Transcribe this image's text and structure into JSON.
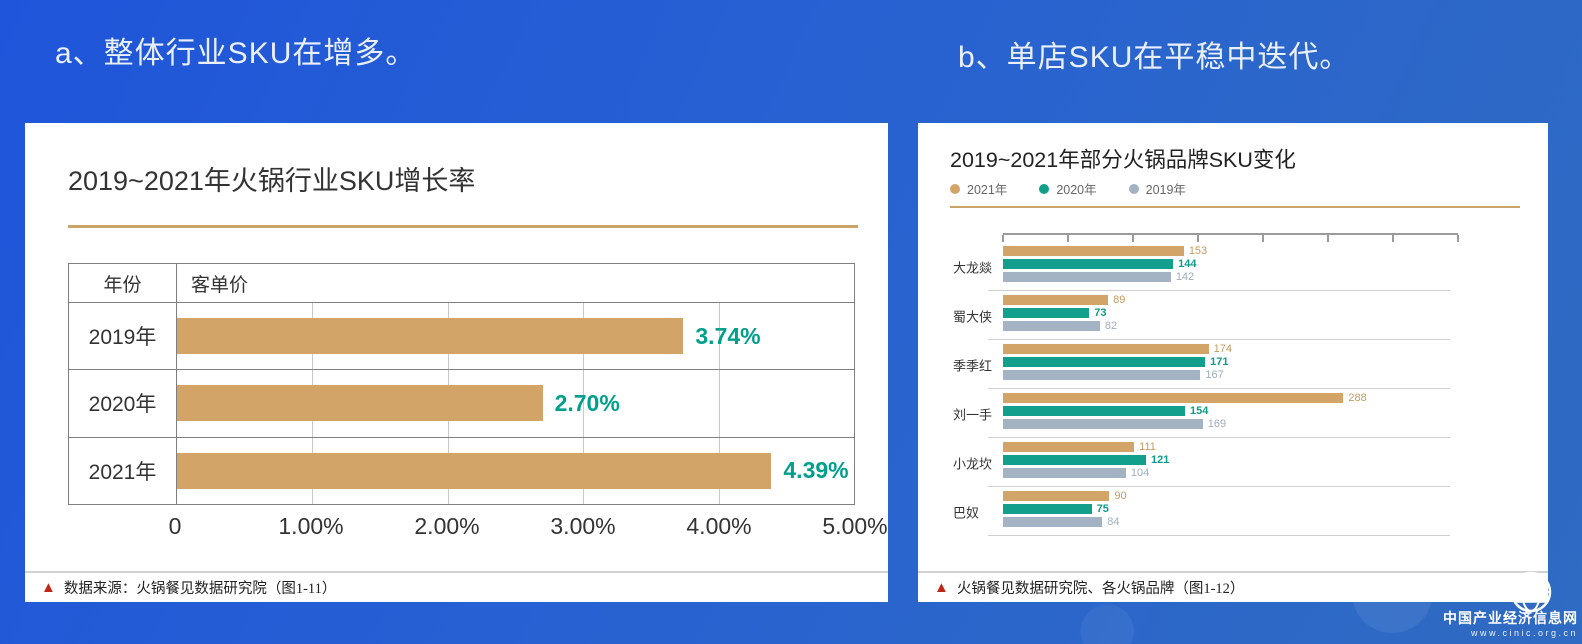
{
  "page": {
    "heading_a": "a、整体行业SKU在增多。",
    "heading_b": "b、单店SKU在平稳中迭代。"
  },
  "colors": {
    "accent_gold": "#c9a469",
    "bar_gold": "#d2a468",
    "bar_teal": "#12a08c",
    "bar_gray": "#a4b3c3",
    "label_gold": "#c49a5f",
    "label_teal": "#0f9c88",
    "label_gray": "#9fadbb",
    "value_teal": "#00a08c",
    "source_red": "#c02718"
  },
  "left_chart": {
    "title": "2019~2021年火锅行业SKU增长率",
    "table_header": {
      "col1": "年份",
      "col2": "客单价"
    },
    "source_marker": "▲",
    "source": "数据来源：火锅餐见数据研究院（图1-11）",
    "chart_data": {
      "type": "bar",
      "orientation": "horizontal",
      "title": "2019~2021年火锅行业SKU增长率",
      "categories": [
        "2019年",
        "2020年",
        "2021年"
      ],
      "values": [
        3.74,
        2.7,
        4.39
      ],
      "value_labels": [
        "3.74%",
        "2.70%",
        "4.39%"
      ],
      "x_ticks": [
        "0",
        "1.00%",
        "2.00%",
        "3.00%",
        "4.00%",
        "5.00%"
      ],
      "xlim": [
        0,
        5
      ],
      "grid": true,
      "bar_color": "#d2a468",
      "value_color": "#00a08c"
    }
  },
  "right_chart": {
    "title": "2019~2021年部分火锅品牌SKU变化",
    "source_marker": "▲",
    "source": "火锅餐见数据研究院、各火锅品牌（图1-12）",
    "chart_data": {
      "type": "bar",
      "orientation": "horizontal",
      "title": "2019~2021年部分火锅品牌SKU变化",
      "categories": [
        "大龙燚",
        "蜀大侠",
        "季季红",
        "刘一手",
        "小龙坎",
        "巴奴"
      ],
      "series": [
        {
          "name": "2021年",
          "color": "#d2a468",
          "label_color": "#c49a5f",
          "values": [
            153,
            89,
            174,
            288,
            111,
            90
          ]
        },
        {
          "name": "2020年",
          "color": "#12a08c",
          "label_color": "#0f9c88",
          "values": [
            144,
            73,
            171,
            154,
            121,
            75
          ]
        },
        {
          "name": "2019年",
          "color": "#a4b3c3",
          "label_color": "#9fadbb",
          "values": [
            142,
            82,
            167,
            169,
            104,
            84
          ]
        }
      ],
      "xlim": [
        0,
        385
      ],
      "axis_tick_count": 8,
      "legend_position": "top-left",
      "grid": false
    }
  },
  "watermark": {
    "line1": "中国产业经济信息网",
    "line2": "www.cinic.org.cn"
  }
}
